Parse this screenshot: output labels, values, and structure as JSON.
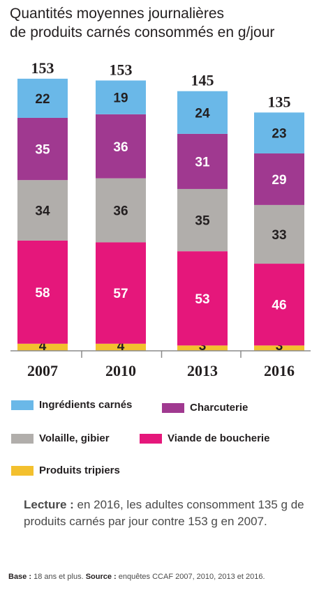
{
  "title": {
    "line1": "Quantités moyennes journalières",
    "line2": "de produits carnés consommés en g/jour"
  },
  "chart_data": {
    "type": "bar",
    "stacked": true,
    "categories": [
      "2007",
      "2010",
      "2013",
      "2016"
    ],
    "totals": [
      153,
      153,
      145,
      135
    ],
    "series": [
      {
        "name": "Produits tripiers",
        "color": "#f3c02e",
        "values": [
          4,
          4,
          3,
          3
        ]
      },
      {
        "name": "Viande de boucherie",
        "color": "#e5177b",
        "values": [
          58,
          57,
          53,
          46
        ]
      },
      {
        "name": "Volaille, gibier",
        "color": "#b1aeab",
        "values": [
          34,
          36,
          35,
          33
        ]
      },
      {
        "name": "Charcuterie",
        "color": "#a03990",
        "values": [
          35,
          36,
          31,
          29
        ]
      },
      {
        "name": "Ingrédients carnés",
        "color": "#6ab8e8",
        "values": [
          22,
          19,
          24,
          23
        ]
      }
    ],
    "grid": false,
    "legend": "bottom"
  },
  "legend": [
    {
      "label": "Ingrédients carnés",
      "color": "#6ab8e8"
    },
    {
      "label": "Charcuterie",
      "color": "#a03990"
    },
    {
      "label": "Volaille, gibier",
      "color": "#b1aeab"
    },
    {
      "label": "Viande de boucherie",
      "color": "#e5177b"
    },
    {
      "label": "Produits tripiers",
      "color": "#f3c02e"
    }
  ],
  "note": {
    "lead": "Lecture :",
    "text": " en 2016, les adultes consomment 135 g de produits carnés par jour contre 153 g en 2007."
  },
  "footer": {
    "base_label": "Base :",
    "base_text": " 18 ans et plus. ",
    "source_label": "Source :",
    "source_text": " enquêtes CCAF 2007, 2010, 2013 et 2016."
  }
}
